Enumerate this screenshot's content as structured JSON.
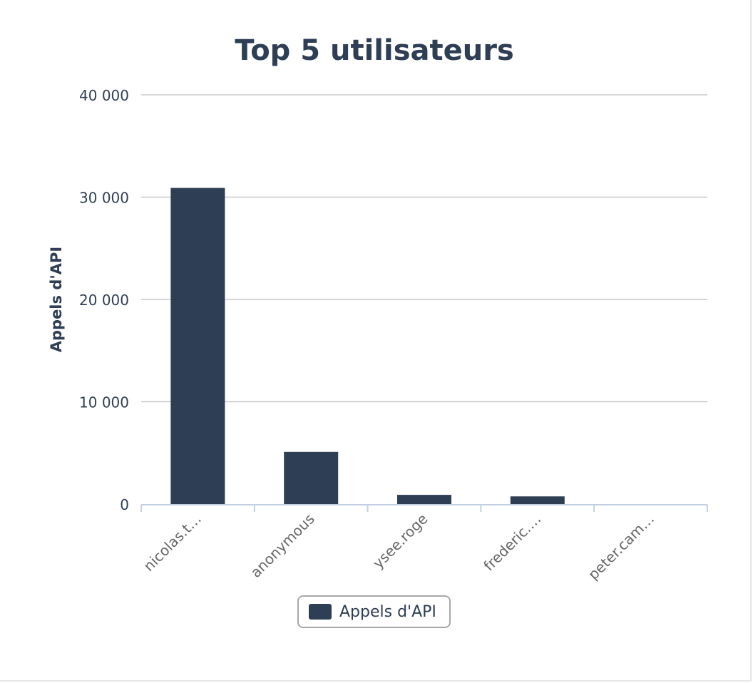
{
  "colors": {
    "bar": "#2e3e55",
    "grid": "#c8c8c8",
    "axis": "#c0d0e0",
    "text": "#2e3e55"
  },
  "chart_data": {
    "type": "bar",
    "title": "Top 5 utilisateurs",
    "xlabel": "",
    "ylabel": "Appels d'API",
    "categories": [
      "nicolas.t…",
      "anonymous",
      "ysee.roge",
      "frederic.…",
      "peter.cam…"
    ],
    "series": [
      {
        "name": "Appels d'API",
        "values": [
          30900,
          5100,
          900,
          750,
          0
        ]
      }
    ],
    "ylim": [
      0,
      40000
    ],
    "yticks": [
      0,
      10000,
      20000,
      30000,
      40000
    ],
    "ytick_labels": [
      "0",
      "10 000",
      "20 000",
      "30 000",
      "40 000"
    ],
    "grid": true,
    "legend": "bottom-center"
  }
}
